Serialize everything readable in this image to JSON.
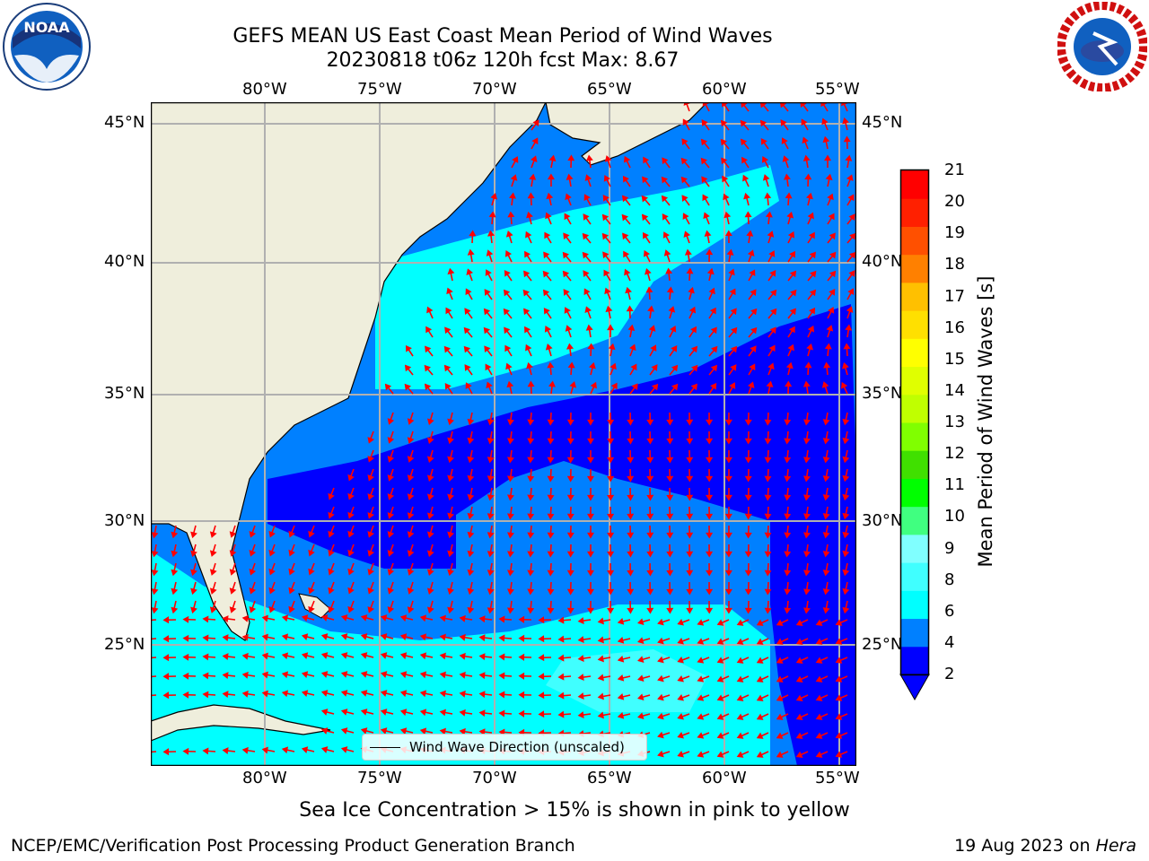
{
  "header": {
    "title_line1": "GEFS MEAN US East Coast Mean Period of Wind Waves",
    "title_line2": "20230818 t06z 120h fcst   Max: 8.67"
  },
  "logos": {
    "left": "NOAA",
    "right": "NATIONAL WEATHER SERVICE"
  },
  "map": {
    "lon_ticks": [
      "80°W",
      "75°W",
      "70°W",
      "65°W",
      "60°W",
      "55°W"
    ],
    "lat_ticks": [
      "45°N",
      "40°N",
      "35°N",
      "30°N",
      "25°N"
    ],
    "legend_label": "Wind Wave Direction (unscaled)",
    "land_color": "#efeedc",
    "arrow_color": "#ff0000"
  },
  "colorbar": {
    "label": "Mean Period of Wind Waves [s]",
    "ticks": [
      "21",
      "20",
      "19",
      "18",
      "17",
      "16",
      "15",
      "14",
      "13",
      "12",
      "11",
      "10",
      "9",
      "8",
      "6",
      "4",
      "2"
    ],
    "colors": [
      "#0000ff",
      "#0080ff",
      "#00ffff",
      "#40ffff",
      "#80ffff",
      "#40ff80",
      "#00ff00",
      "#40e000",
      "#80ff00",
      "#c0ff00",
      "#e0ff00",
      "#ffff00",
      "#ffe000",
      "#ffc000",
      "#ff8000",
      "#ff5000",
      "#ff2000",
      "#ff0000"
    ]
  },
  "caption": "Sea Ice Concentration > 15% is shown in pink to yellow",
  "footer": {
    "left": "NCEP/EMC/Verification Post Processing Product Generation Branch",
    "right_date": "19 Aug 2023 on ",
    "right_host": "Hera"
  }
}
